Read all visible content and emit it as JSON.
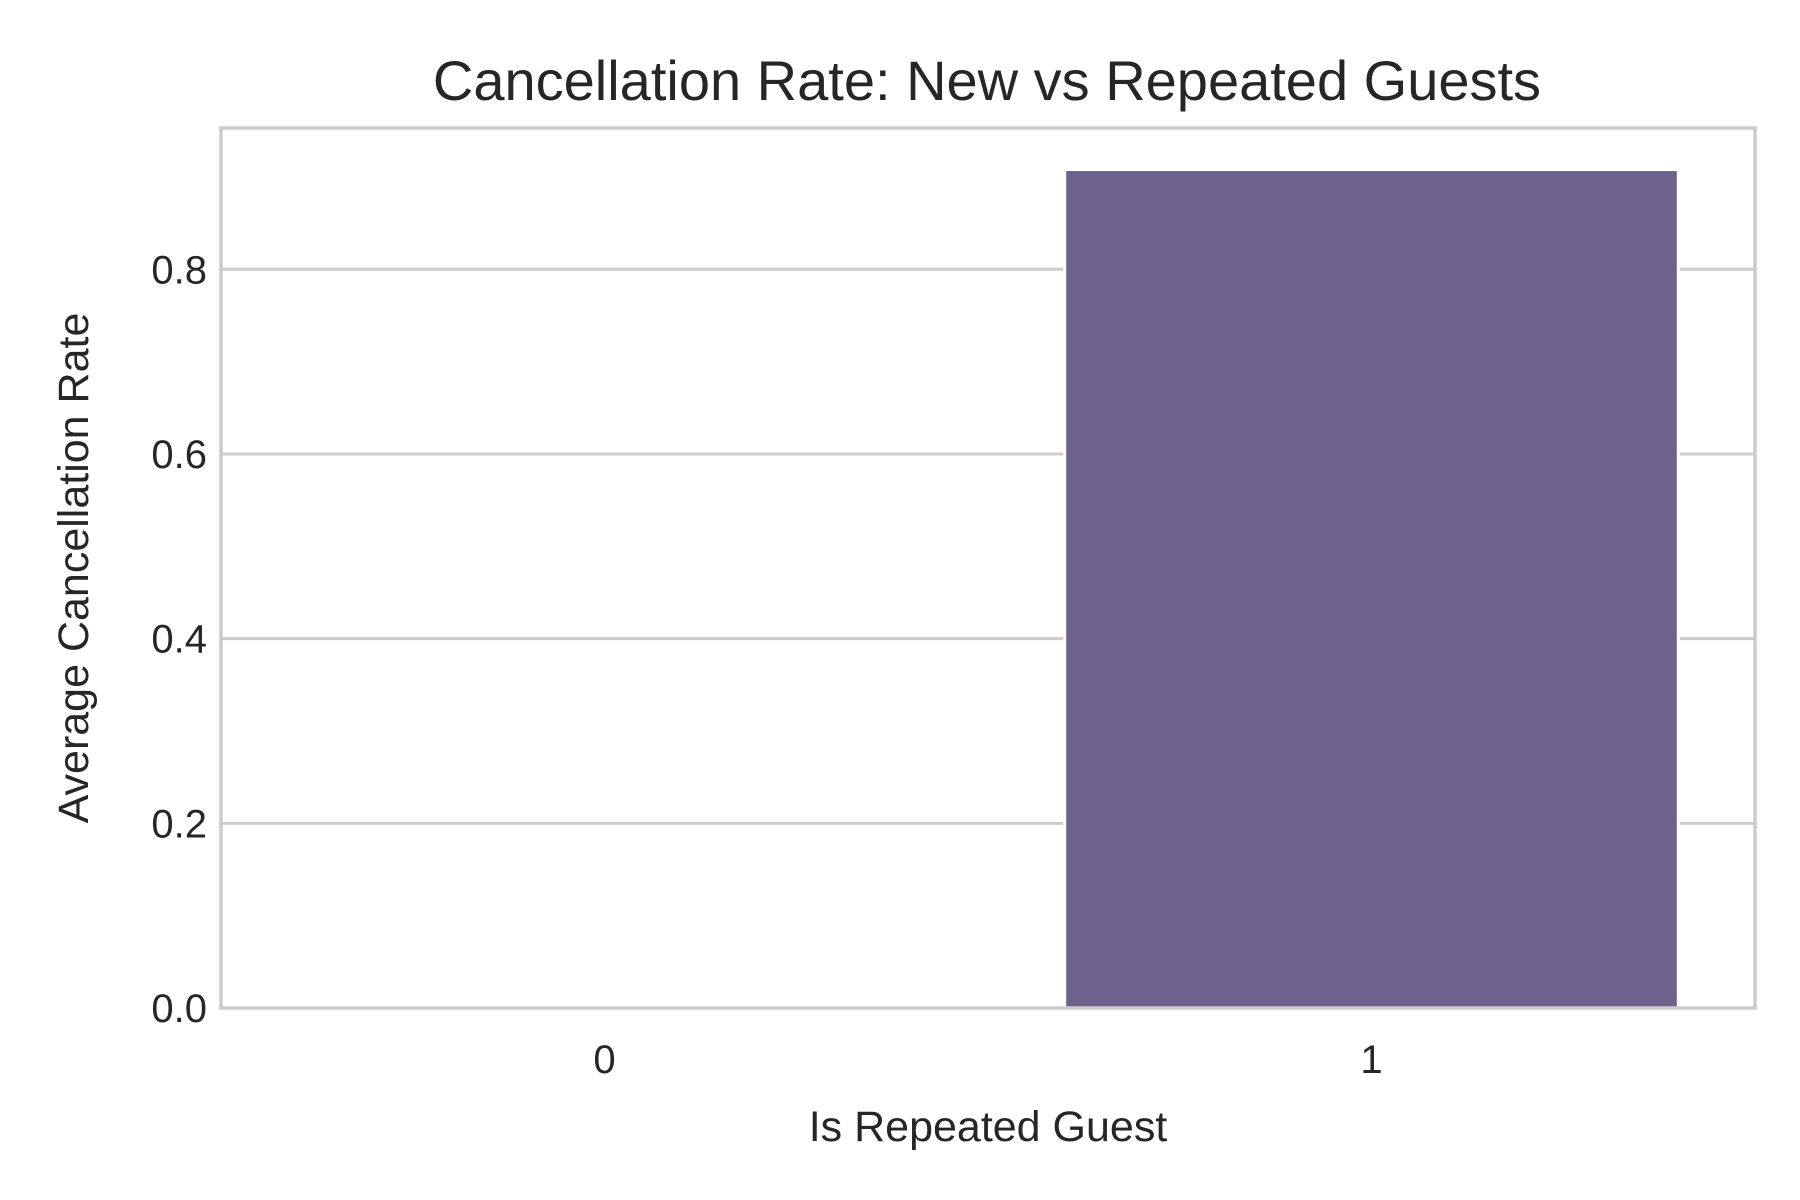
{
  "chart_data": {
    "type": "bar",
    "title": "Cancellation Rate: New vs Repeated Guests",
    "xlabel": "Is Repeated Guest",
    "ylabel": "Average Cancellation Rate",
    "categories": [
      "0",
      "1"
    ],
    "values": [
      0.0,
      0.908
    ],
    "ylim": [
      0,
      0.953
    ],
    "yticks": [
      0.0,
      0.2,
      0.4,
      0.6,
      0.8
    ],
    "ytick_labels": [
      "0.0",
      "0.2",
      "0.4",
      "0.6",
      "0.8"
    ],
    "grid": "horizontal",
    "legend": "none",
    "bar_color": "#6c628c",
    "grid_color": "#cccccc",
    "frame_color": "#cccccc",
    "text_color": "#262626"
  }
}
